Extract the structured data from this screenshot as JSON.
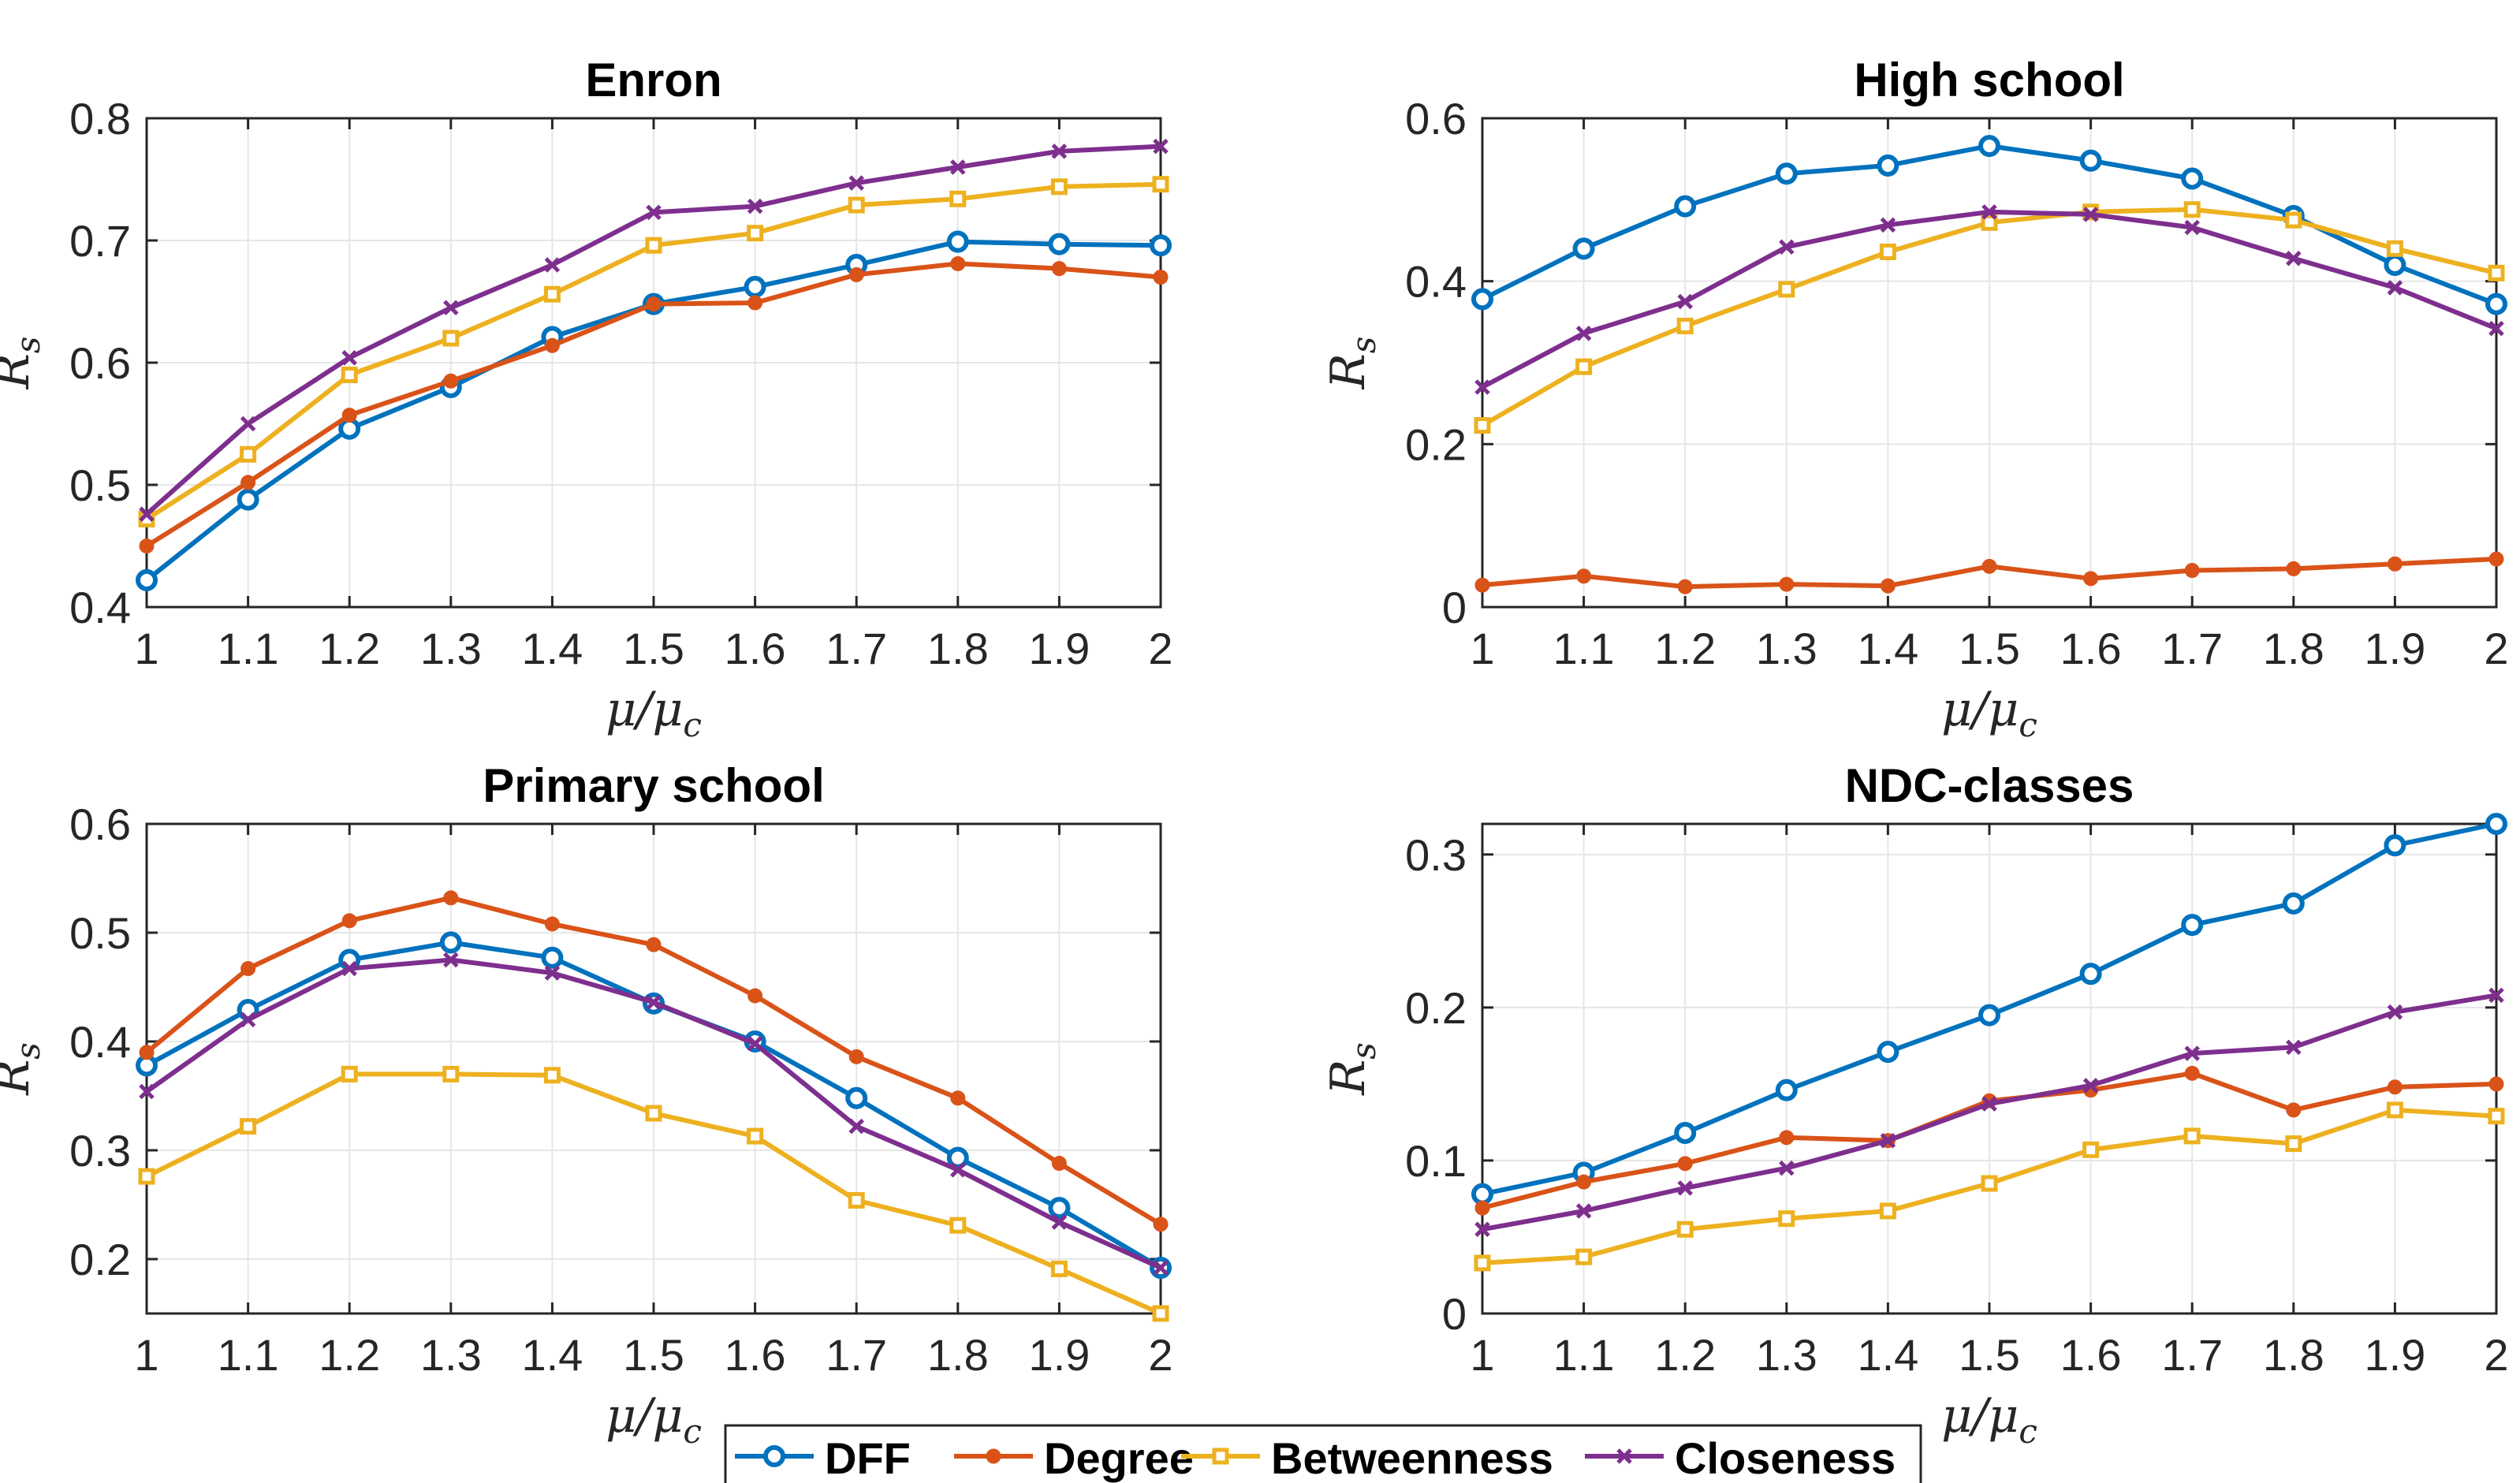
{
  "chart_data": [
    {
      "type": "line",
      "title": "Enron",
      "xlabel": "μ/μ_c",
      "ylabel": "R_s",
      "x": [
        1,
        1.1,
        1.2,
        1.3,
        1.4,
        1.5,
        1.6,
        1.7,
        1.8,
        1.9,
        2
      ],
      "xlim": [
        1,
        2
      ],
      "ylim": [
        0.4,
        0.8
      ],
      "yticks": [
        "0.4",
        "0.5",
        "0.6",
        "0.7",
        "0.8"
      ],
      "grid": true,
      "series": [
        {
          "name": "DFF",
          "values": [
            0.422,
            0.488,
            0.546,
            0.58,
            0.621,
            0.648,
            0.662,
            0.68,
            0.699,
            0.697,
            0.696
          ]
        },
        {
          "name": "Degree",
          "values": [
            0.45,
            0.502,
            0.557,
            0.585,
            0.614,
            0.648,
            0.649,
            0.672,
            0.681,
            0.677,
            0.67
          ]
        },
        {
          "name": "Betweenness",
          "values": [
            0.472,
            0.525,
            0.59,
            0.62,
            0.656,
            0.696,
            0.706,
            0.729,
            0.734,
            0.744,
            0.746
          ]
        },
        {
          "name": "Closeness",
          "values": [
            0.476,
            0.55,
            0.604,
            0.645,
            0.68,
            0.723,
            0.728,
            0.747,
            0.76,
            0.773,
            0.777
          ]
        }
      ]
    },
    {
      "type": "line",
      "title": "High school",
      "xlabel": "μ/μ_c",
      "ylabel": "R_s",
      "x": [
        1,
        1.1,
        1.2,
        1.3,
        1.4,
        1.5,
        1.6,
        1.7,
        1.8,
        1.9,
        2
      ],
      "xlim": [
        1,
        2
      ],
      "ylim": [
        0,
        0.6
      ],
      "yticks": [
        "0",
        "0.2",
        "0.4",
        "0.6"
      ],
      "grid": true,
      "series": [
        {
          "name": "DFF",
          "values": [
            0.378,
            0.44,
            0.492,
            0.532,
            0.542,
            0.566,
            0.548,
            0.526,
            0.48,
            0.42,
            0.372
          ]
        },
        {
          "name": "Degree",
          "values": [
            0.027,
            0.038,
            0.025,
            0.028,
            0.026,
            0.05,
            0.035,
            0.045,
            0.047,
            0.053,
            0.059
          ]
        },
        {
          "name": "Betweenness",
          "values": [
            0.223,
            0.295,
            0.345,
            0.39,
            0.436,
            0.472,
            0.485,
            0.488,
            0.475,
            0.44,
            0.41
          ]
        },
        {
          "name": "Closeness",
          "values": [
            0.27,
            0.336,
            0.375,
            0.442,
            0.469,
            0.485,
            0.482,
            0.466,
            0.428,
            0.392,
            0.342
          ]
        }
      ]
    },
    {
      "type": "line",
      "title": "Primary school",
      "xlabel": "μ/μ_c",
      "ylabel": "R_s",
      "x": [
        1,
        1.1,
        1.2,
        1.3,
        1.4,
        1.5,
        1.6,
        1.7,
        1.8,
        1.9,
        2
      ],
      "xlim": [
        1,
        2
      ],
      "ylim": [
        0.15,
        0.6
      ],
      "yticks": [
        "0.2",
        "0.3",
        "0.4",
        "0.5",
        "0.6"
      ],
      "grid": true,
      "series": [
        {
          "name": "DFF",
          "values": [
            0.378,
            0.429,
            0.475,
            0.491,
            0.477,
            0.435,
            0.4,
            0.348,
            0.293,
            0.247,
            0.192
          ]
        },
        {
          "name": "Degree",
          "values": [
            0.39,
            0.467,
            0.511,
            0.532,
            0.508,
            0.489,
            0.442,
            0.386,
            0.348,
            0.288,
            0.232
          ]
        },
        {
          "name": "Betweenness",
          "values": [
            0.276,
            0.322,
            0.37,
            0.37,
            0.369,
            0.334,
            0.313,
            0.254,
            0.231,
            0.191,
            0.15
          ]
        },
        {
          "name": "Closeness",
          "values": [
            0.354,
            0.42,
            0.467,
            0.475,
            0.463,
            0.436,
            0.398,
            0.322,
            0.282,
            0.234,
            0.192
          ]
        }
      ]
    },
    {
      "type": "line",
      "title": "NDC-classes",
      "xlabel": "μ/μ_c",
      "ylabel": "R_s",
      "x": [
        1,
        1.1,
        1.2,
        1.3,
        1.4,
        1.5,
        1.6,
        1.7,
        1.8,
        1.9,
        2
      ],
      "xlim": [
        1,
        2
      ],
      "ylim": [
        0,
        0.32
      ],
      "yticks": [
        "0",
        "0.1",
        "0.2",
        "0.3"
      ],
      "grid": true,
      "series": [
        {
          "name": "DFF",
          "values": [
            0.078,
            0.092,
            0.118,
            0.146,
            0.171,
            0.195,
            0.222,
            0.254,
            0.268,
            0.306,
            0.32
          ]
        },
        {
          "name": "Degree",
          "values": [
            0.069,
            0.086,
            0.098,
            0.115,
            0.113,
            0.139,
            0.146,
            0.157,
            0.133,
            0.148,
            0.15
          ]
        },
        {
          "name": "Betweenness",
          "values": [
            0.033,
            0.037,
            0.055,
            0.062,
            0.067,
            0.085,
            0.107,
            0.116,
            0.111,
            0.133,
            0.129
          ]
        },
        {
          "name": "Closeness",
          "values": [
            0.055,
            0.067,
            0.082,
            0.095,
            0.113,
            0.137,
            0.149,
            0.17,
            0.174,
            0.197,
            0.208
          ]
        }
      ]
    }
  ],
  "xtick_labels": [
    "1",
    "1.1",
    "1.2",
    "1.3",
    "1.4",
    "1.5",
    "1.6",
    "1.7",
    "1.8",
    "1.9",
    "2"
  ],
  "legend": {
    "placement": "bottom-center",
    "entries": [
      {
        "name": "DFF",
        "color": "#0072BD",
        "marker": "circle"
      },
      {
        "name": "Degree",
        "color": "#D95319",
        "marker": "dot"
      },
      {
        "name": "Betweenness",
        "color": "#EDB120",
        "marker": "square"
      },
      {
        "name": "Closeness",
        "color": "#7E2F8E",
        "marker": "x"
      }
    ]
  }
}
